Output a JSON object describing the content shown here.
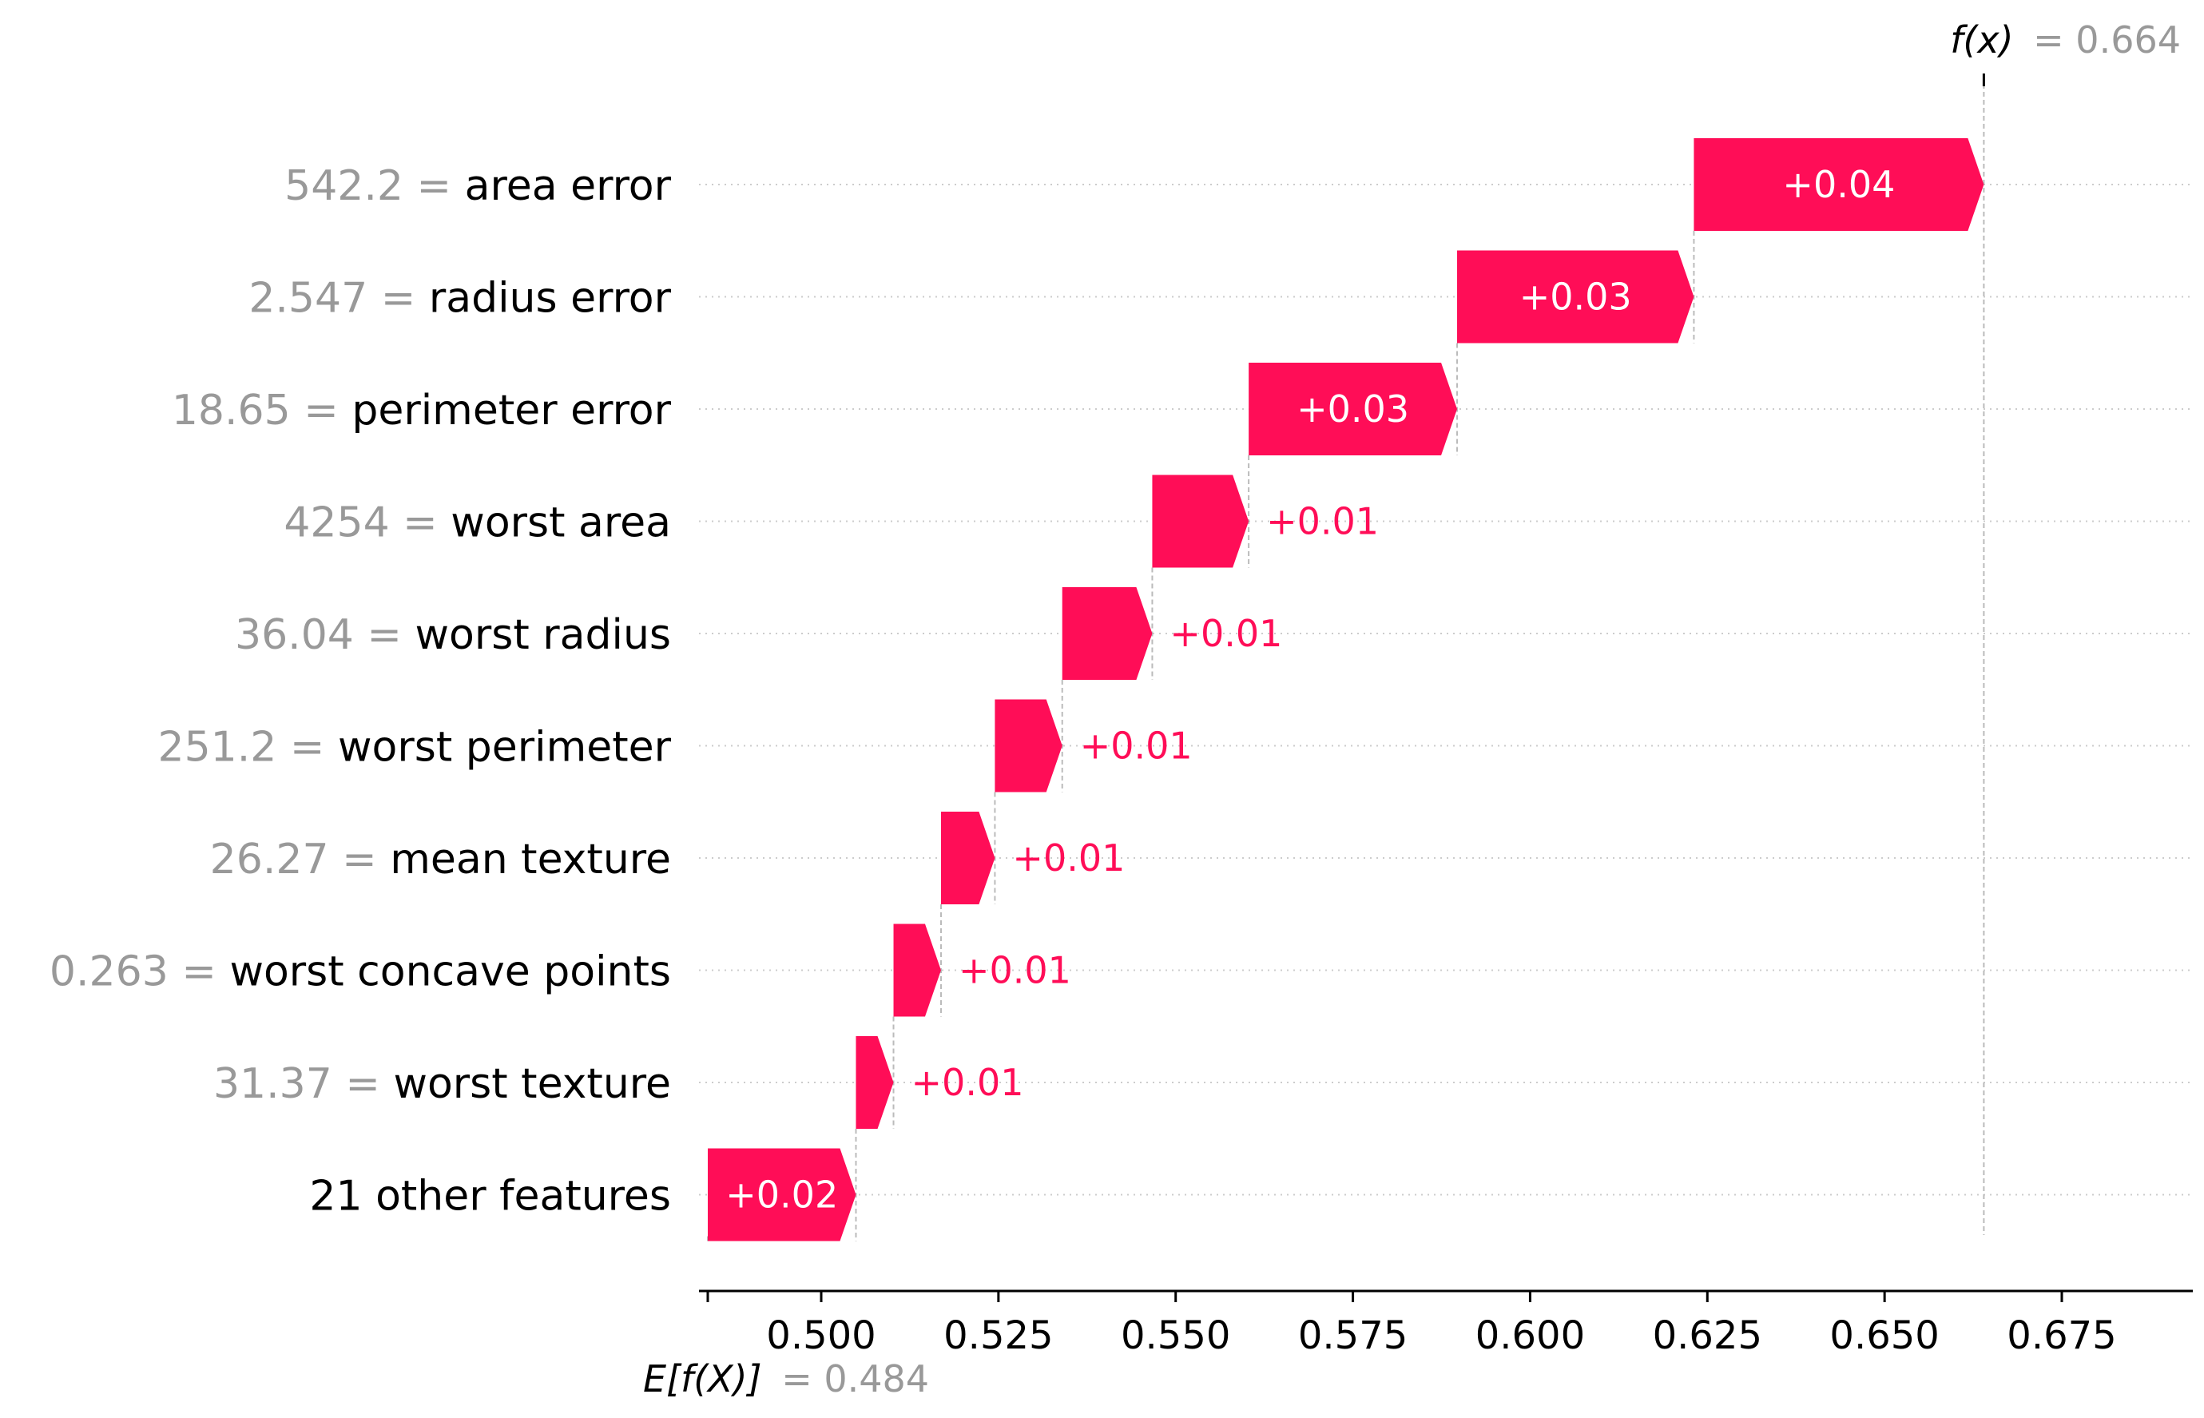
{
  "chart_data": {
    "type": "waterfall",
    "base_value": 0.484,
    "output_value": 0.664,
    "base_label": "E[f(X)]",
    "output_label": "f(x)",
    "base_value_text": "= 0.484",
    "output_value_text": "= 0.664",
    "xlim": [
      0.484,
      0.692
    ],
    "x_ticks": [
      0.5,
      0.525,
      0.55,
      0.575,
      0.6,
      0.625,
      0.65,
      0.675
    ],
    "x_tick_labels": [
      "0.500",
      "0.525",
      "0.550",
      "0.575",
      "0.600",
      "0.625",
      "0.650",
      "0.675"
    ],
    "positive_color": "#ff0d57",
    "features": [
      {
        "value": "542.2",
        "name": "area error",
        "start": 0.6231,
        "end": 0.664,
        "label": "+0.04"
      },
      {
        "value": "2.547",
        "name": "radius error",
        "start": 0.5897,
        "end": 0.6231,
        "label": "+0.03"
      },
      {
        "value": "18.65",
        "name": "perimeter error",
        "start": 0.5603,
        "end": 0.5897,
        "label": "+0.03"
      },
      {
        "value": "4254",
        "name": "worst area",
        "start": 0.5467,
        "end": 0.5603,
        "label": "+0.01"
      },
      {
        "value": "36.04",
        "name": "worst radius",
        "start": 0.534,
        "end": 0.5467,
        "label": "+0.01"
      },
      {
        "value": "251.2",
        "name": "worst perimeter",
        "start": 0.5245,
        "end": 0.534,
        "label": "+0.01"
      },
      {
        "value": "26.27",
        "name": "mean texture",
        "start": 0.5169,
        "end": 0.5245,
        "label": "+0.01"
      },
      {
        "value": "0.263",
        "name": "worst concave points",
        "start": 0.5102,
        "end": 0.5169,
        "label": "+0.01"
      },
      {
        "value": "31.37",
        "name": "worst texture",
        "start": 0.5049,
        "end": 0.5102,
        "label": "+0.01"
      },
      {
        "value": "",
        "name": "21 other features",
        "start": 0.484,
        "end": 0.5049,
        "label": "+0.02"
      }
    ]
  }
}
